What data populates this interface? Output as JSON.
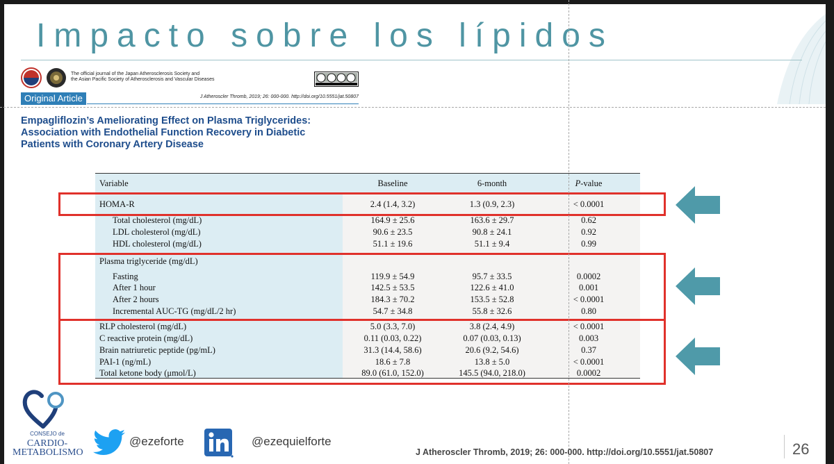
{
  "slide": {
    "title": "Impacto sobre los lípidos",
    "page_number": "26"
  },
  "journal": {
    "description_line1": "The official journal of the Japan Atherosclerosis Society and",
    "description_line2": "the Asian Pacific Society of Atherosclerosis and Vascular Diseases",
    "article_type": "Original Article",
    "citation": "J Atheroscler Thromb, 2019; 26: 000-000.  http://doi.org/10.5551/jat.50807",
    "license_icon": "cc-by-nc-sa-badge"
  },
  "article": {
    "title_line1": "Empagliflozin’s Ameliorating Effect on Plasma Triglycerides:",
    "title_line2": "Association with Endothelial Function Recovery in Diabetic",
    "title_line3": "Patients with Coronary Artery Disease"
  },
  "table": {
    "headers": {
      "variable": "Variable",
      "baseline": "Baseline",
      "six_month": "6-month",
      "p_italic": "P",
      "p_rest": "-value"
    },
    "homa": {
      "variable": "HOMA-R",
      "baseline": "2.4 (1.4, 3.2)",
      "six_month": "1.3 (0.9, 2.3)",
      "p": "< 0.0001"
    },
    "cholesterol_rows": [
      {
        "variable": "Total cholesterol (mg/dL)",
        "baseline": "164.9 ± 25.6",
        "six_month": "163.6 ± 29.7",
        "p": "0.62"
      },
      {
        "variable": "LDL cholesterol (mg/dL)",
        "baseline": "90.6 ± 23.5",
        "six_month": "90.8 ± 24.1",
        "p": "0.92"
      },
      {
        "variable": "HDL cholesterol (mg/dL)",
        "baseline": "51.1 ± 19.6",
        "six_month": "51.1 ± 9.4",
        "p": "0.99"
      }
    ],
    "tg_heading": "Plasma triglyceride (mg/dL)",
    "tg_rows": [
      {
        "variable": "Fasting",
        "baseline": "119.9 ± 54.9",
        "six_month": "95.7 ± 33.5",
        "p": "0.0002"
      },
      {
        "variable": "After 1 hour",
        "baseline": "142.5 ± 53.5",
        "six_month": "122.6 ± 41.0",
        "p": "0.001"
      },
      {
        "variable": "After 2 hours",
        "baseline": "184.3 ± 70.2",
        "six_month": "153.5 ± 52.8",
        "p": "< 0.0001"
      },
      {
        "variable": "Incremental AUC-TG (mg/dL/2 hr)",
        "baseline": "54.7 ± 34.8",
        "six_month": "55.8 ± 32.6",
        "p": "0.80"
      }
    ],
    "other_rows": [
      {
        "variable": "RLP cholesterol (mg/dL)",
        "baseline": "5.0 (3.3, 7.0)",
        "six_month": "3.8 (2.4, 4.9)",
        "p": "< 0.0001"
      },
      {
        "variable": "C reactive protein (mg/dL)",
        "baseline": "0.11 (0.03, 0.22)",
        "six_month": "0.07 (0.03, 0.13)",
        "p": "0.003"
      },
      {
        "variable": "Brain natriuretic peptide (pg/mL)",
        "baseline": "31.3 (14.4, 58.6)",
        "six_month": "20.6 (9.2, 54.6)",
        "p": "0.37"
      },
      {
        "variable": "PAI-1 (ng/mL)",
        "baseline": "18.6 ± 7.8",
        "six_month": "13.8 ± 5.0",
        "p": "< 0.0001"
      },
      {
        "variable": "Total ketone body (μmol/L)",
        "baseline": "89.0 (61.0, 152.0)",
        "six_month": "145.5 (94.0, 218.0)",
        "p": "0.0002"
      }
    ]
  },
  "footer": {
    "council_prefix": "CONSEJO de",
    "council_line1": "CARDIO-",
    "council_line2": "METABOLISMO",
    "twitter_handle": "@ezeforte",
    "linkedin_handle": "@ezequielforte",
    "citation": "J Atheroscler Thromb, 2019; 26: 000-000. http://doi.org/10.5551/jat.50807"
  },
  "colors": {
    "title": "#4f95a3",
    "highlight": "#e0312b",
    "arrow": "#4f9aa9",
    "article_title": "#1e4d8c",
    "table_shade": "#dcedf3"
  }
}
